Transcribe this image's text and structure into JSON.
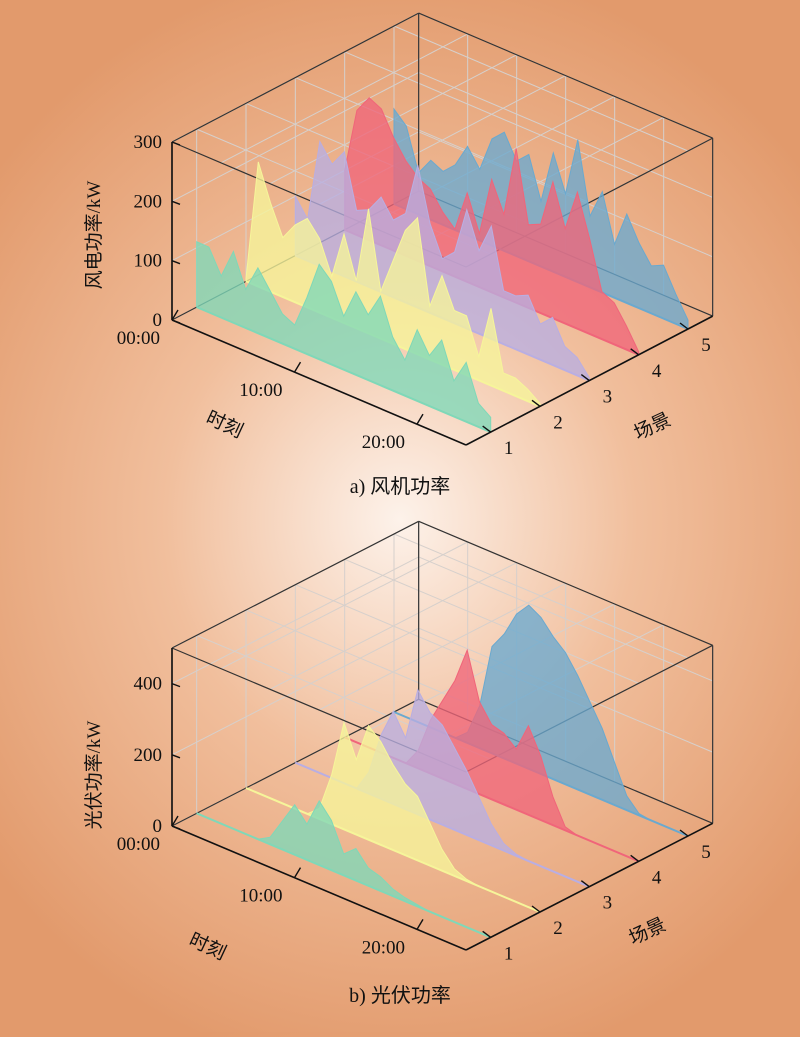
{
  "colors": {
    "series": [
      "#7fd8b8",
      "#f6f59a",
      "#b9aee2",
      "#f0657a",
      "#6aa9cf"
    ]
  },
  "chart_data": [
    {
      "type": "area",
      "caption": "a) 风机功率",
      "ylabel": "风电功率/kW",
      "xlabel": "时刻",
      "zlabel": "场景",
      "yticks": [
        "0",
        "100",
        "200",
        "300"
      ],
      "ylim": [
        0,
        300
      ],
      "xticks": [
        "00:00",
        "10:00",
        "20:00"
      ],
      "xtick_positions": [
        0,
        10,
        20
      ],
      "xlim": [
        0,
        24
      ],
      "zticks": [
        "1",
        "2",
        "3",
        "4",
        "5"
      ],
      "x": [
        0,
        1,
        2,
        3,
        4,
        5,
        6,
        7,
        8,
        9,
        10,
        11,
        12,
        13,
        14,
        15,
        16,
        17,
        18,
        19,
        20,
        21,
        22,
        23,
        24
      ],
      "series": [
        {
          "values": [
            110,
            110,
            70,
            120,
            65,
            110,
            80,
            50,
            40,
            95,
            160,
            140,
            90,
            140,
            110,
            150,
            90,
            60,
            120,
            85,
            120,
            60,
            100,
            40,
            25
          ]
        },
        {
          "values": [
            5,
            210,
            150,
            100,
            130,
            150,
            125,
            70,
            150,
            80,
            210,
            80,
            140,
            200,
            230,
            90,
            150,
            100,
            100,
            40,
            130,
            30,
            30,
            20,
            5
          ]
        },
        {
          "values": [
            100,
            70,
            210,
            180,
            210,
            120,
            130,
            160,
            130,
            150,
            240,
            150,
            100,
            120,
            200,
            140,
            190,
            90,
            90,
            100,
            60,
            80,
            40,
            30,
            5
          ]
        },
        {
          "values": [
            100,
            210,
            240,
            230,
            190,
            160,
            140,
            130,
            100,
            80,
            150,
            90,
            190,
            140,
            260,
            140,
            150,
            230,
            160,
            230,
            160,
            80,
            70,
            40,
            5
          ]
        },
        {
          "values": [
            160,
            140,
            70,
            100,
            90,
            110,
            150,
            120,
            180,
            200,
            160,
            180,
            110,
            200,
            140,
            240,
            120,
            170,
            90,
            150,
            110,
            80,
            90,
            50,
            15
          ]
        }
      ]
    },
    {
      "type": "area",
      "caption": "b) 光伏功率",
      "ylabel": "光伏功率/kW",
      "xlabel": "时刻",
      "zlabel": "场景",
      "yticks": [
        "0",
        "200",
        "400"
      ],
      "ylim": [
        0,
        500
      ],
      "xticks": [
        "00:00",
        "10:00",
        "20:00"
      ],
      "xtick_positions": [
        0,
        10,
        20
      ],
      "xlim": [
        0,
        24
      ],
      "zticks": [
        "1",
        "2",
        "3",
        "4",
        "5"
      ],
      "x": [
        0,
        1,
        2,
        3,
        4,
        5,
        6,
        7,
        8,
        9,
        10,
        11,
        12,
        13,
        14,
        15,
        16,
        17,
        18,
        19,
        20,
        21,
        22,
        23,
        24
      ],
      "series": [
        {
          "values": [
            0,
            0,
            0,
            0,
            0,
            0,
            20,
            80,
            140,
            100,
            180,
            140,
            60,
            90,
            50,
            40,
            20,
            10,
            5,
            0,
            0,
            0,
            0,
            0,
            0
          ]
        },
        {
          "values": [
            0,
            0,
            0,
            0,
            0,
            0,
            30,
            140,
            300,
            210,
            320,
            290,
            240,
            200,
            180,
            120,
            60,
            20,
            5,
            0,
            0,
            0,
            0,
            0,
            0
          ]
        },
        {
          "values": [
            0,
            0,
            0,
            0,
            0,
            0,
            60,
            180,
            260,
            200,
            350,
            300,
            280,
            230,
            180,
            120,
            60,
            20,
            5,
            0,
            0,
            0,
            0,
            0,
            0
          ]
        },
        {
          "values": [
            0,
            0,
            0,
            0,
            0,
            0,
            50,
            150,
            220,
            290,
            390,
            260,
            210,
            200,
            170,
            250,
            180,
            80,
            10,
            0,
            0,
            0,
            0,
            0,
            0
          ]
        },
        {
          "values": [
            0,
            0,
            0,
            0,
            0,
            0,
            30,
            120,
            300,
            350,
            420,
            460,
            440,
            400,
            370,
            320,
            260,
            200,
            120,
            40,
            5,
            0,
            0,
            0,
            0
          ]
        }
      ]
    }
  ]
}
